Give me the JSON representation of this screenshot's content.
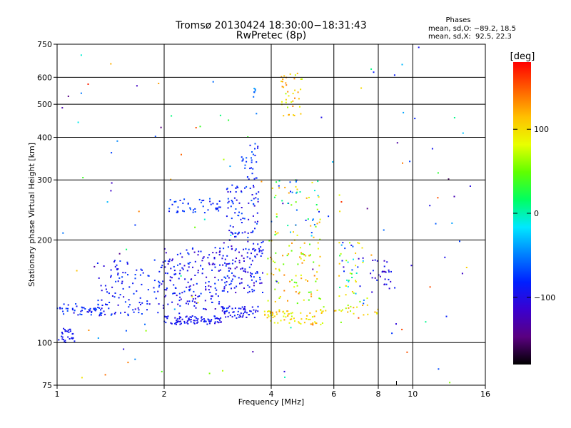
{
  "chart_data": {
    "type": "scatter",
    "title": "Tromsø 20130424 18:30:00−18:31:43",
    "subtitle": "RwPretec (8p)",
    "xlabel": "Frequency [MHz]",
    "ylabel": "Stationary phase Virtual Height [km]",
    "x_scale": "log",
    "y_scale": "log",
    "xlim": [
      1,
      16
    ],
    "ylim": [
      75,
      750
    ],
    "x_ticks": [
      1,
      2,
      4,
      6,
      8,
      10,
      16
    ],
    "x_tick_labels": [
      "1",
      "2",
      "4",
      "6",
      "8",
      "10",
      "16"
    ],
    "y_ticks": [
      75,
      100,
      200,
      300,
      400,
      500,
      600,
      750
    ],
    "y_tick_labels": [
      "75",
      "100",
      "200",
      "300",
      "400",
      "500",
      "600",
      "750"
    ],
    "x_minor_ticks": [
      9
    ],
    "grid": true,
    "stats": {
      "heading": "Phases",
      "line1": "mean, sd,O: −89.2, 18.5",
      "line2": "mean, sd,X:  92.5, 22.3"
    },
    "colorbar": {
      "label": "[deg]",
      "ticks": [
        100,
        0,
        -100
      ],
      "tick_labels": [
        "100",
        "0",
        "−100"
      ],
      "range": [
        -180,
        180
      ],
      "colormap": [
        "#000000",
        "#5a0080",
        "#3a00d0",
        "#0020ff",
        "#0080ff",
        "#00e8ff",
        "#00ff60",
        "#60ff00",
        "#e8ff00",
        "#ffc000",
        "#ff6000",
        "#ff0000"
      ]
    },
    "series": [
      {
        "clusters": [
          {
            "f": [
              1.0,
              1.12
            ],
            "h": [
              100,
              110
            ],
            "p": [
              -100,
              -85
            ],
            "n": 30
          },
          {
            "f": [
              1.0,
              1.5
            ],
            "h": [
              120,
              130
            ],
            "p": [
              -110,
              -60
            ],
            "n": 60
          },
          {
            "f": [
              1.3,
              2.0
            ],
            "h": [
              120,
              175
            ],
            "p": [
              -110,
              -70
            ],
            "n": 110
          },
          {
            "f": [
              2.0,
              2.9
            ],
            "h": [
              113,
              120
            ],
            "p": [
              -110,
              -80
            ],
            "n": 90
          },
          {
            "f": [
              2.0,
              2.9
            ],
            "h": [
              125,
              190
            ],
            "p": [
              -120,
              -70
            ],
            "n": 160
          },
          {
            "f": [
              2.05,
              2.9
            ],
            "h": [
              240,
              265
            ],
            "p": [
              -100,
              -60
            ],
            "n": 45
          },
          {
            "f": [
              2.9,
              3.7
            ],
            "h": [
              118,
              128
            ],
            "p": [
              -110,
              -80
            ],
            "n": 60
          },
          {
            "f": [
              2.9,
              3.8
            ],
            "h": [
              140,
              200
            ],
            "p": [
              -120,
              -70
            ],
            "n": 130
          },
          {
            "f": [
              3.0,
              3.7
            ],
            "h": [
              200,
              290
            ],
            "p": [
              -110,
              -60
            ],
            "n": 80
          },
          {
            "f": [
              3.3,
              3.7
            ],
            "h": [
              300,
              390
            ],
            "p": [
              -100,
              -60
            ],
            "n": 30
          },
          {
            "f": [
              3.55,
              3.62
            ],
            "h": [
              520,
              560
            ],
            "p": [
              -70,
              -30
            ],
            "n": 6
          },
          {
            "f": [
              3.8,
              5.6
            ],
            "h": [
              113,
              125
            ],
            "p": [
              70,
              130
            ],
            "n": 70
          },
          {
            "f": [
              3.9,
              5.5
            ],
            "h": [
              130,
              200
            ],
            "p": [
              40,
              140
            ],
            "n": 80
          },
          {
            "f": [
              4.0,
              5.5
            ],
            "h": [
              200,
              300
            ],
            "p": [
              -120,
              130
            ],
            "n": 60
          },
          {
            "f": [
              4.25,
              4.9
            ],
            "h": [
              450,
              620
            ],
            "p": [
              60,
              140
            ],
            "n": 40
          },
          {
            "f": [
              6.2,
              7.3
            ],
            "h": [
              130,
              200
            ],
            "p": [
              -120,
              120
            ],
            "n": 50
          },
          {
            "f": [
              7.6,
              8.9
            ],
            "h": [
              140,
              175
            ],
            "p": [
              -130,
              -80
            ],
            "n": 30
          },
          {
            "f": [
              5.5,
              8.0
            ],
            "h": [
              120,
              130
            ],
            "p": [
              60,
              130
            ],
            "n": 25
          },
          {
            "f": [
              1.0,
              15.0
            ],
            "h": [
              76,
              740
            ],
            "p": [
              -160,
              170
            ],
            "n": 120
          }
        ]
      }
    ]
  }
}
